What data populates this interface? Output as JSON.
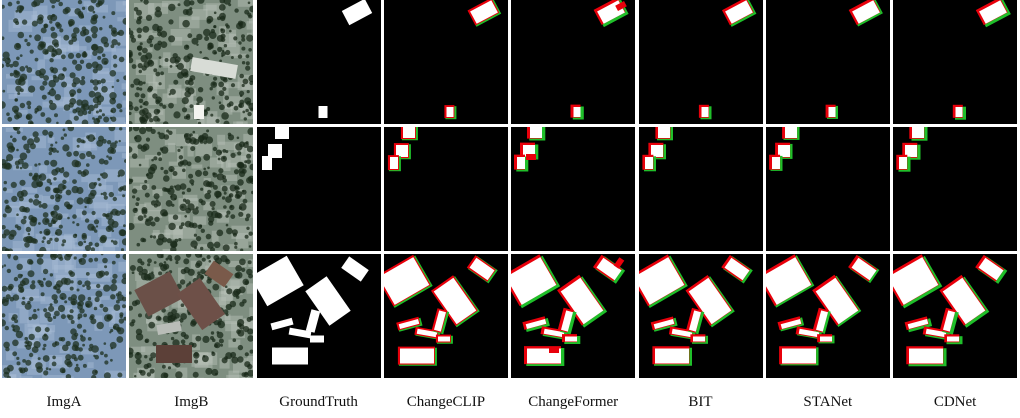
{
  "figure": {
    "columns": [
      {
        "label": "ImgA",
        "kind": "photo-a"
      },
      {
        "label": "ImgB",
        "kind": "photo-b"
      },
      {
        "label": "GroundTruth",
        "kind": "mask"
      },
      {
        "label": "ChangeCLIP",
        "kind": "mask"
      },
      {
        "label": "ChangeFormer",
        "kind": "mask"
      },
      {
        "label": "BIT",
        "kind": "mask"
      },
      {
        "label": "STANet",
        "kind": "mask"
      },
      {
        "label": "CDNet",
        "kind": "mask"
      }
    ],
    "rows": 3,
    "legend_colors": {
      "true_positive": "#ffffff",
      "false_positive": "#e8000b",
      "false_negative": "#1fbf2a",
      "true_negative": "#000000"
    }
  }
}
